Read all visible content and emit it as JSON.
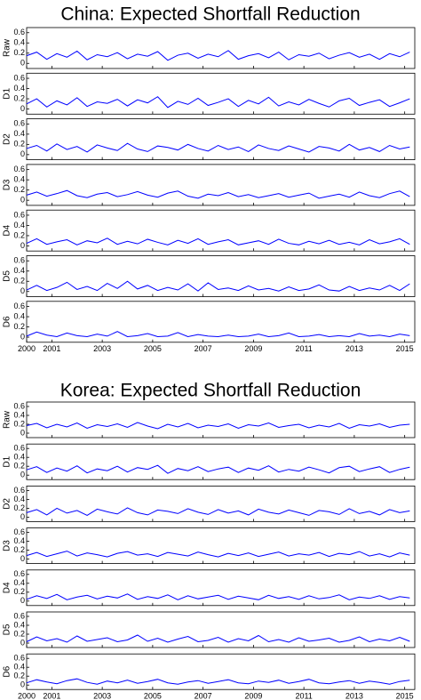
{
  "chart_data": [
    {
      "type": "line",
      "title": "China: Expected Shortfall Reduction",
      "x": [
        2000,
        2000.4,
        2000.8,
        2001.2,
        2001.6,
        2002,
        2002.4,
        2002.8,
        2003.2,
        2003.6,
        2004,
        2004.4,
        2004.8,
        2005.2,
        2005.6,
        2006,
        2006.4,
        2006.8,
        2007.2,
        2007.6,
        2008,
        2008.4,
        2008.8,
        2009.2,
        2009.6,
        2010,
        2010.4,
        2010.8,
        2011.2,
        2011.6,
        2012,
        2012.4,
        2012.8,
        2013.2,
        2013.6,
        2014,
        2014.4,
        2014.8,
        2015.2
      ],
      "xlim": [
        2000,
        2015.4
      ],
      "xticks": [
        2000,
        2001,
        2003,
        2005,
        2007,
        2009,
        2011,
        2013,
        2015
      ],
      "ylim": [
        -0.1,
        0.7
      ],
      "yticks": [
        0,
        0.2,
        0.4,
        0.6
      ],
      "series": [
        {
          "name": "Raw",
          "color": "#0000ff",
          "values": [
            0.15,
            0.22,
            0.08,
            0.19,
            0.12,
            0.24,
            0.07,
            0.17,
            0.13,
            0.21,
            0.09,
            0.18,
            0.14,
            0.23,
            0.06,
            0.16,
            0.2,
            0.1,
            0.18,
            0.13,
            0.25,
            0.08,
            0.15,
            0.19,
            0.11,
            0.22,
            0.07,
            0.17,
            0.14,
            0.2,
            0.09,
            0.16,
            0.21,
            0.12,
            0.18,
            0.08,
            0.19,
            0.13,
            0.22
          ]
        },
        {
          "name": "D1",
          "color": "#0000ff",
          "values": [
            0.1,
            0.2,
            0.04,
            0.16,
            0.08,
            0.22,
            0.05,
            0.14,
            0.11,
            0.19,
            0.06,
            0.18,
            0.12,
            0.24,
            0.03,
            0.15,
            0.09,
            0.21,
            0.07,
            0.13,
            0.2,
            0.05,
            0.17,
            0.1,
            0.23,
            0.06,
            0.14,
            0.08,
            0.19,
            0.11,
            0.04,
            0.16,
            0.21,
            0.07,
            0.13,
            0.18,
            0.05,
            0.12,
            0.2
          ]
        },
        {
          "name": "D2",
          "color": "#0000ff",
          "values": [
            0.12,
            0.18,
            0.07,
            0.21,
            0.1,
            0.16,
            0.05,
            0.19,
            0.13,
            0.08,
            0.22,
            0.11,
            0.06,
            0.17,
            0.14,
            0.09,
            0.2,
            0.12,
            0.07,
            0.18,
            0.1,
            0.15,
            0.06,
            0.19,
            0.12,
            0.08,
            0.17,
            0.11,
            0.05,
            0.16,
            0.13,
            0.07,
            0.2,
            0.09,
            0.14,
            0.06,
            0.18,
            0.11,
            0.15
          ]
        },
        {
          "name": "D3",
          "color": "#0000ff",
          "values": [
            0.1,
            0.16,
            0.08,
            0.13,
            0.19,
            0.09,
            0.05,
            0.12,
            0.15,
            0.07,
            0.11,
            0.17,
            0.1,
            0.06,
            0.14,
            0.18,
            0.08,
            0.04,
            0.12,
            0.09,
            0.15,
            0.07,
            0.11,
            0.05,
            0.09,
            0.13,
            0.06,
            0.1,
            0.14,
            0.04,
            0.08,
            0.12,
            0.06,
            0.16,
            0.09,
            0.05,
            0.13,
            0.18,
            0.07
          ]
        },
        {
          "name": "D4",
          "color": "#0000ff",
          "values": [
            0.05,
            0.14,
            0.03,
            0.08,
            0.12,
            0.02,
            0.1,
            0.06,
            0.15,
            0.03,
            0.09,
            0.04,
            0.13,
            0.07,
            0.02,
            0.11,
            0.05,
            0.14,
            0.03,
            0.08,
            0.12,
            0.02,
            0.06,
            0.1,
            0.03,
            0.13,
            0.05,
            0.02,
            0.09,
            0.04,
            0.11,
            0.03,
            0.07,
            0.02,
            0.12,
            0.04,
            0.08,
            0.14,
            0.03
          ]
        },
        {
          "name": "D5",
          "color": "#0000ff",
          "values": [
            0.03,
            0.12,
            0.02,
            0.08,
            0.18,
            0.04,
            0.1,
            0.02,
            0.16,
            0.06,
            0.2,
            0.05,
            0.12,
            0.02,
            0.08,
            0.03,
            0.15,
            0.01,
            0.17,
            0.04,
            0.07,
            0.02,
            0.11,
            0.03,
            0.06,
            0.01,
            0.09,
            0.02,
            0.05,
            0.13,
            0.03,
            0.01,
            0.1,
            0.02,
            0.07,
            0.03,
            0.12,
            0.02,
            0.15
          ]
        },
        {
          "name": "D6",
          "color": "#0000ff",
          "values": [
            0.02,
            0.1,
            0.04,
            0.01,
            0.08,
            0.03,
            0.01,
            0.06,
            0.02,
            0.11,
            0.01,
            0.03,
            0.07,
            0.01,
            0.02,
            0.09,
            0.01,
            0.05,
            0.02,
            0.01,
            0.04,
            0.01,
            0.02,
            0.06,
            0.01,
            0.03,
            0.08,
            0.01,
            0.02,
            0.05,
            0.01,
            0.03,
            0.01,
            0.07,
            0.02,
            0.04,
            0.01,
            0.06,
            0.03
          ]
        }
      ]
    },
    {
      "type": "line",
      "title": "Korea: Expected Shortfall Reduction",
      "x": [
        2000,
        2000.4,
        2000.8,
        2001.2,
        2001.6,
        2002,
        2002.4,
        2002.8,
        2003.2,
        2003.6,
        2004,
        2004.4,
        2004.8,
        2005.2,
        2005.6,
        2006,
        2006.4,
        2006.8,
        2007.2,
        2007.6,
        2008,
        2008.4,
        2008.8,
        2009.2,
        2009.6,
        2010,
        2010.4,
        2010.8,
        2011.2,
        2011.6,
        2012,
        2012.4,
        2012.8,
        2013.2,
        2013.6,
        2014,
        2014.4,
        2014.8,
        2015.2
      ],
      "xlim": [
        2000,
        2015.4
      ],
      "xticks": [
        2000,
        2001,
        2003,
        2005,
        2007,
        2009,
        2011,
        2013,
        2015
      ],
      "ylim": [
        -0.1,
        0.7
      ],
      "yticks": [
        0,
        0.2,
        0.4,
        0.6
      ],
      "series": [
        {
          "name": "Raw",
          "color": "#0000ff",
          "values": [
            0.17,
            0.22,
            0.12,
            0.2,
            0.14,
            0.23,
            0.11,
            0.19,
            0.15,
            0.21,
            0.13,
            0.24,
            0.16,
            0.1,
            0.2,
            0.14,
            0.22,
            0.12,
            0.18,
            0.15,
            0.21,
            0.11,
            0.19,
            0.16,
            0.23,
            0.13,
            0.17,
            0.2,
            0.12,
            0.18,
            0.14,
            0.22,
            0.11,
            0.19,
            0.16,
            0.21,
            0.13,
            0.18,
            0.2
          ]
        },
        {
          "name": "D1",
          "color": "#0000ff",
          "values": [
            0.12,
            0.19,
            0.06,
            0.16,
            0.09,
            0.21,
            0.05,
            0.14,
            0.1,
            0.2,
            0.07,
            0.17,
            0.13,
            0.22,
            0.04,
            0.15,
            0.1,
            0.19,
            0.08,
            0.14,
            0.18,
            0.06,
            0.16,
            0.11,
            0.21,
            0.07,
            0.13,
            0.09,
            0.18,
            0.12,
            0.05,
            0.17,
            0.2,
            0.08,
            0.14,
            0.19,
            0.06,
            0.13,
            0.18
          ]
        },
        {
          "name": "D2",
          "color": "#0000ff",
          "values": [
            0.1,
            0.17,
            0.05,
            0.2,
            0.09,
            0.15,
            0.04,
            0.18,
            0.12,
            0.07,
            0.21,
            0.1,
            0.05,
            0.16,
            0.13,
            0.08,
            0.19,
            0.11,
            0.06,
            0.17,
            0.09,
            0.14,
            0.05,
            0.18,
            0.11,
            0.07,
            0.16,
            0.1,
            0.04,
            0.15,
            0.12,
            0.06,
            0.19,
            0.08,
            0.13,
            0.05,
            0.17,
            0.1,
            0.14
          ]
        },
        {
          "name": "D3",
          "color": "#0000ff",
          "values": [
            0.08,
            0.15,
            0.06,
            0.12,
            0.18,
            0.07,
            0.14,
            0.1,
            0.05,
            0.13,
            0.17,
            0.09,
            0.12,
            0.06,
            0.15,
            0.11,
            0.07,
            0.16,
            0.1,
            0.05,
            0.13,
            0.08,
            0.14,
            0.06,
            0.11,
            0.16,
            0.07,
            0.12,
            0.09,
            0.15,
            0.06,
            0.13,
            0.1,
            0.17,
            0.07,
            0.12,
            0.05,
            0.14,
            0.09
          ]
        },
        {
          "name": "D4",
          "color": "#0000ff",
          "values": [
            0.04,
            0.12,
            0.06,
            0.15,
            0.03,
            0.09,
            0.13,
            0.05,
            0.11,
            0.07,
            0.16,
            0.04,
            0.1,
            0.06,
            0.14,
            0.03,
            0.12,
            0.05,
            0.09,
            0.13,
            0.04,
            0.11,
            0.07,
            0.03,
            0.13,
            0.06,
            0.1,
            0.04,
            0.12,
            0.05,
            0.08,
            0.14,
            0.03,
            0.09,
            0.06,
            0.12,
            0.04,
            0.1,
            0.07
          ]
        },
        {
          "name": "D5",
          "color": "#0000ff",
          "values": [
            0.03,
            0.14,
            0.05,
            0.1,
            0.02,
            0.16,
            0.04,
            0.08,
            0.12,
            0.03,
            0.07,
            0.18,
            0.04,
            0.11,
            0.02,
            0.09,
            0.15,
            0.03,
            0.06,
            0.13,
            0.02,
            0.1,
            0.05,
            0.17,
            0.03,
            0.08,
            0.02,
            0.12,
            0.04,
            0.07,
            0.11,
            0.02,
            0.06,
            0.14,
            0.03,
            0.09,
            0.05,
            0.13,
            0.04
          ]
        },
        {
          "name": "D6",
          "color": "#0000ff",
          "values": [
            0.05,
            0.12,
            0.07,
            0.03,
            0.1,
            0.14,
            0.06,
            0.02,
            0.09,
            0.05,
            0.11,
            0.04,
            0.08,
            0.13,
            0.05,
            0.02,
            0.07,
            0.1,
            0.04,
            0.08,
            0.12,
            0.05,
            0.03,
            0.09,
            0.06,
            0.11,
            0.04,
            0.08,
            0.13,
            0.05,
            0.03,
            0.07,
            0.1,
            0.04,
            0.09,
            0.06,
            0.02,
            0.08,
            0.11
          ]
        }
      ]
    }
  ]
}
